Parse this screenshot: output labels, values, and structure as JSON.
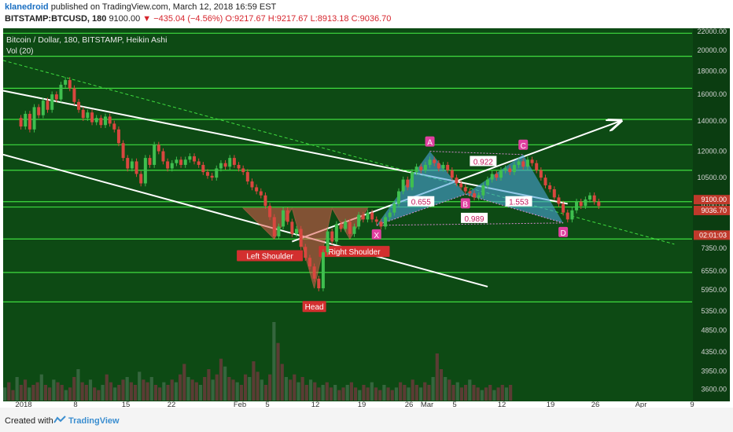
{
  "header": {
    "user": "klanedroid",
    "published": "published on TradingView.com, March 12, 2018 16:59 EST",
    "symbol": "BITSTAMP:BTCUSD, 180",
    "last": "9100.00",
    "change": "▼ −435.04 (−4.56%)",
    "ohlc": "O:9217.67 H:9217.67 L:8913.18 C:9036.70"
  },
  "footer": {
    "created": "Created with",
    "brand": "TradingView"
  },
  "colors": {
    "background": "#0d4a14",
    "up": "#2e9b3a",
    "down": "#c0392b",
    "pattern_red": "#e05a4f",
    "pattern_blue": "#4aa3d8",
    "label_pink": "#e040a0",
    "hline": "#3fdc3f"
  },
  "chart_data": {
    "type": "candlestick",
    "title": "Bitcoin / Dollar, 180, BITSTAMP, Heikin Ashi",
    "subtitle": "Vol (20)",
    "y_scale": "log",
    "ylim": [
      3400,
      22000
    ],
    "y_ticks": [
      22000,
      20000,
      18000,
      16000,
      14000,
      12000,
      10500,
      9100,
      7350,
      6550,
      5950,
      5350,
      4850,
      4350,
      3950,
      3600
    ],
    "y_tick_labels": [
      "22000.00",
      "20000.00",
      "18000.00",
      "16000.00",
      "14000.00",
      "12000.00",
      "10500.00",
      "9100.00",
      "7350.00",
      "6550.00",
      "5950.00",
      "5350.00",
      "4850.00",
      "4350.00",
      "3950.00",
      "3600.00"
    ],
    "x_ticks": [
      "2018",
      "8",
      "15",
      "22",
      "Feb",
      "5",
      "12",
      "19",
      "26",
      "Mar",
      "5",
      "12",
      "19",
      "26",
      "Apr",
      "9"
    ],
    "price_labels": [
      {
        "text": "9100.00",
        "value": 9100,
        "color": "#c0392b"
      },
      {
        "text": "9036.70",
        "value": 9036.7,
        "color": "#c0392b"
      },
      {
        "text": "02:01:03",
        "value": 8300,
        "color": "#c0392b"
      }
    ],
    "price_path": [
      {
        "t": 0,
        "p": 14200
      },
      {
        "t": 0.5,
        "p": 13600
      },
      {
        "t": 1,
        "p": 14500
      },
      {
        "t": 1.5,
        "p": 13400
      },
      {
        "t": 2,
        "p": 15000
      },
      {
        "t": 2.5,
        "p": 14400
      },
      {
        "t": 3,
        "p": 15500
      },
      {
        "t": 3.5,
        "p": 14800
      },
      {
        "t": 4,
        "p": 16000
      },
      {
        "t": 4.5,
        "p": 15600
      },
      {
        "t": 5,
        "p": 16800
      },
      {
        "t": 5.5,
        "p": 17200
      },
      {
        "t": 6,
        "p": 16500
      },
      {
        "t": 6.5,
        "p": 15400
      },
      {
        "t": 7,
        "p": 14800
      },
      {
        "t": 7.5,
        "p": 14200
      },
      {
        "t": 8,
        "p": 14600
      },
      {
        "t": 8.5,
        "p": 13900
      },
      {
        "t": 9,
        "p": 14200
      },
      {
        "t": 9.5,
        "p": 13700
      },
      {
        "t": 10,
        "p": 14300
      },
      {
        "t": 10.5,
        "p": 13800
      },
      {
        "t": 11,
        "p": 13400
      },
      {
        "t": 11.5,
        "p": 12500
      },
      {
        "t": 12,
        "p": 11600
      },
      {
        "t": 12.5,
        "p": 11000
      },
      {
        "t": 13,
        "p": 11400
      },
      {
        "t": 13.5,
        "p": 10700
      },
      {
        "t": 14,
        "p": 10200
      },
      {
        "t": 14.5,
        "p": 11600
      },
      {
        "t": 15,
        "p": 11200
      },
      {
        "t": 15.5,
        "p": 12400
      },
      {
        "t": 16,
        "p": 12000
      },
      {
        "t": 16.5,
        "p": 11400
      },
      {
        "t": 17,
        "p": 11000
      },
      {
        "t": 17.5,
        "p": 11300
      },
      {
        "t": 18,
        "p": 11500
      },
      {
        "t": 18.5,
        "p": 11200
      },
      {
        "t": 19,
        "p": 11500
      },
      {
        "t": 19.5,
        "p": 11700
      },
      {
        "t": 20,
        "p": 11400
      },
      {
        "t": 20.5,
        "p": 11200
      },
      {
        "t": 21,
        "p": 10800
      },
      {
        "t": 21.5,
        "p": 10600
      },
      {
        "t": 22,
        "p": 10500
      },
      {
        "t": 22.5,
        "p": 11000
      },
      {
        "t": 23,
        "p": 11300
      },
      {
        "t": 23.5,
        "p": 11100
      },
      {
        "t": 24,
        "p": 11600
      },
      {
        "t": 24.5,
        "p": 11200
      },
      {
        "t": 25,
        "p": 11000
      },
      {
        "t": 25.5,
        "p": 10800
      },
      {
        "t": 26,
        "p": 10300
      },
      {
        "t": 26.5,
        "p": 10000
      },
      {
        "t": 27,
        "p": 9800
      },
      {
        "t": 27.5,
        "p": 9600
      },
      {
        "t": 28,
        "p": 9100
      },
      {
        "t": 28.5,
        "p": 8600
      },
      {
        "t": 29,
        "p": 7800
      },
      {
        "t": 29.5,
        "p": 8200
      },
      {
        "t": 30,
        "p": 8900
      },
      {
        "t": 30.5,
        "p": 8400
      },
      {
        "t": 31,
        "p": 7900
      },
      {
        "t": 31.5,
        "p": 8100
      },
      {
        "t": 32,
        "p": 7400
      },
      {
        "t": 32.5,
        "p": 7000
      },
      {
        "t": 33,
        "p": 6700
      },
      {
        "t": 33.5,
        "p": 6300
      },
      {
        "t": 34,
        "p": 6000
      },
      {
        "t": 34.5,
        "p": 7200
      },
      {
        "t": 35,
        "p": 8000
      },
      {
        "t": 35.5,
        "p": 7600
      },
      {
        "t": 36,
        "p": 8300
      },
      {
        "t": 36.5,
        "p": 8100
      },
      {
        "t": 37,
        "p": 8400
      },
      {
        "t": 37.5,
        "p": 7900
      },
      {
        "t": 38,
        "p": 8200
      },
      {
        "t": 38.5,
        "p": 8700
      },
      {
        "t": 39,
        "p": 8500
      },
      {
        "t": 39.5,
        "p": 8800
      },
      {
        "t": 40,
        "p": 8500
      },
      {
        "t": 40.5,
        "p": 8400
      },
      {
        "t": 41,
        "p": 8200
      },
      {
        "t": 41.5,
        "p": 8600
      },
      {
        "t": 42,
        "p": 8800
      },
      {
        "t": 42.5,
        "p": 9200
      },
      {
        "t": 43,
        "p": 9800
      },
      {
        "t": 43.5,
        "p": 10400
      },
      {
        "t": 44,
        "p": 10000
      },
      {
        "t": 44.5,
        "p": 10800
      },
      {
        "t": 45,
        "p": 11100
      },
      {
        "t": 45.5,
        "p": 10900
      },
      {
        "t": 46,
        "p": 11200
      },
      {
        "t": 46.5,
        "p": 11500
      },
      {
        "t": 47,
        "p": 11300
      },
      {
        "t": 47.5,
        "p": 11000
      },
      {
        "t": 48,
        "p": 11200
      },
      {
        "t": 48.5,
        "p": 10900
      },
      {
        "t": 49,
        "p": 10500
      },
      {
        "t": 49.5,
        "p": 10200
      },
      {
        "t": 50,
        "p": 10000
      },
      {
        "t": 50.5,
        "p": 9800
      },
      {
        "t": 51,
        "p": 9700
      },
      {
        "t": 51.5,
        "p": 9500
      },
      {
        "t": 52,
        "p": 9600
      },
      {
        "t": 52.5,
        "p": 10100
      },
      {
        "t": 53,
        "p": 10400
      },
      {
        "t": 53.5,
        "p": 10700
      },
      {
        "t": 54,
        "p": 10500
      },
      {
        "t": 54.5,
        "p": 10900
      },
      {
        "t": 55,
        "p": 11000
      },
      {
        "t": 55.5,
        "p": 10800
      },
      {
        "t": 56,
        "p": 11200
      },
      {
        "t": 56.5,
        "p": 11400
      },
      {
        "t": 57,
        "p": 11100
      },
      {
        "t": 57.5,
        "p": 11500
      },
      {
        "t": 58,
        "p": 11300
      },
      {
        "t": 58.5,
        "p": 10900
      },
      {
        "t": 59,
        "p": 10500
      },
      {
        "t": 59.5,
        "p": 10100
      },
      {
        "t": 60,
        "p": 9900
      },
      {
        "t": 60.5,
        "p": 9500
      },
      {
        "t": 61,
        "p": 9200
      },
      {
        "t": 61.5,
        "p": 8800
      },
      {
        "t": 62,
        "p": 8500
      },
      {
        "t": 62.5,
        "p": 8900
      },
      {
        "t": 63,
        "p": 9300
      },
      {
        "t": 63.5,
        "p": 9100
      },
      {
        "t": 64,
        "p": 9400
      },
      {
        "t": 64.5,
        "p": 9600
      },
      {
        "t": 65,
        "p": 9300
      },
      {
        "t": 65.5,
        "p": 9100
      }
    ],
    "horizontal_lines": [
      21800,
      19400,
      16500,
      14100,
      12400,
      10900,
      9300,
      9050,
      7700,
      6500,
      5600
    ],
    "trendlines": [
      {
        "from": {
          "t": -1.5,
          "p": 16300
        },
        "to": {
          "t": 62,
          "p": 9200
        },
        "color": "#ffffff",
        "style": "solid"
      },
      {
        "from": {
          "t": -1.5,
          "p": 11800
        },
        "to": {
          "t": 53,
          "p": 6050
        },
        "color": "#ffffff",
        "style": "solid"
      },
      {
        "from": {
          "t": -1.5,
          "p": 19000
        },
        "to": {
          "t": 74,
          "p": 7500
        },
        "color": "#3fdc3f",
        "style": "dashed"
      },
      {
        "from": {
          "t": 31,
          "p": 7600
        },
        "to": {
          "t": 68,
          "p": 14000
        },
        "color": "#ffffff",
        "style": "arrow"
      }
    ],
    "head_shoulders": {
      "points": [
        {
          "t": 25.5,
          "p": 9000
        },
        {
          "t": 29,
          "p": 7700
        },
        {
          "t": 31,
          "p": 9000
        },
        {
          "t": 33.5,
          "p": 6000
        },
        {
          "t": 35.5,
          "p": 9000
        },
        {
          "t": 37.5,
          "p": 7700
        },
        {
          "t": 39.5,
          "p": 9000
        }
      ],
      "labels": [
        {
          "text": "Left Shoulder",
          "t": 28.5,
          "p": 7050
        },
        {
          "text": "Head",
          "t": 33.5,
          "p": 5450
        },
        {
          "text": "Right Shoulder",
          "t": 38,
          "p": 7200
        }
      ]
    },
    "harmonic": {
      "points": [
        {
          "name": "X",
          "t": 40.5,
          "p": 8250
        },
        {
          "name": "A",
          "t": 46.5,
          "p": 12000
        },
        {
          "name": "B",
          "t": 50.5,
          "p": 9650
        },
        {
          "name": "C",
          "t": 57,
          "p": 11800
        },
        {
          "name": "D",
          "t": 61.5,
          "p": 8350
        }
      ],
      "ratios": [
        {
          "text": "0.922",
          "t": 52.5,
          "p": 11400
        },
        {
          "text": "0.655",
          "t": 45.5,
          "p": 9300
        },
        {
          "text": "1.553",
          "t": 56.5,
          "p": 9300
        },
        {
          "text": "0.989",
          "t": 51.5,
          "p": 8550
        }
      ]
    },
    "volume": [
      5,
      7,
      4,
      9,
      6,
      8,
      5,
      6,
      7,
      10,
      6,
      5,
      8,
      7,
      6,
      4,
      5,
      9,
      12,
      7,
      6,
      8,
      5,
      4,
      6,
      10,
      7,
      5,
      6,
      8,
      9,
      7,
      6,
      11,
      8,
      7,
      9,
      6,
      5,
      7,
      6,
      8,
      7,
      10,
      14,
      9,
      8,
      7,
      6,
      9,
      12,
      8,
      10,
      16,
      13,
      9,
      8,
      7,
      6,
      10,
      9,
      15,
      11,
      8,
      6,
      10,
      30,
      22,
      14,
      9,
      8,
      10,
      7,
      9,
      6,
      8,
      7,
      5,
      6,
      7,
      5,
      6,
      4,
      5,
      6,
      7,
      5,
      4,
      6,
      5,
      7,
      5,
      4,
      6,
      5,
      4,
      5,
      7,
      6,
      5,
      8,
      6,
      5,
      7,
      6,
      9,
      18,
      12,
      9,
      8,
      6,
      7,
      5,
      6,
      8,
      6,
      5,
      4,
      5,
      6,
      4,
      5,
      6,
      5,
      6
    ]
  }
}
